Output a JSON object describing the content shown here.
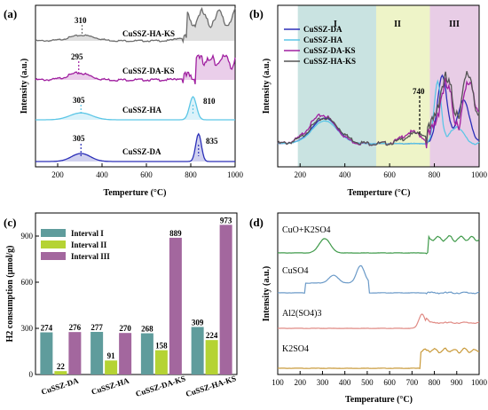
{
  "panels": {
    "a": {
      "label": "(a)",
      "xlabel": "Temperture (°C)",
      "ylabel": "Intensity (a.u.)",
      "xlim": [
        100,
        1000
      ],
      "xticks": [
        200,
        400,
        600,
        800,
        1000
      ],
      "series": [
        {
          "name": "CuSSZ-HA-KS",
          "color": "#6e6e6e",
          "peaks": [
            "310"
          ]
        },
        {
          "name": "CuSSZ-DA-KS",
          "color": "#a020a0",
          "peaks": [
            "295"
          ]
        },
        {
          "name": "CuSSZ-HA",
          "color": "#5cc6e6",
          "peaks": [
            "305",
            "810"
          ]
        },
        {
          "name": "CuSSZ-DA",
          "color": "#2b2fb8",
          "peaks": [
            "305",
            "835"
          ]
        }
      ]
    },
    "b": {
      "label": "(b)",
      "xlabel": "Temperture (°C)",
      "ylabel": "Intensity (a.u.)",
      "xlim": [
        100,
        1000
      ],
      "xticks": [
        200,
        400,
        600,
        800,
        1000
      ],
      "regions": [
        {
          "name": "I",
          "from": 190,
          "to": 540,
          "color": "#c9e3e1"
        },
        {
          "name": "II",
          "from": 540,
          "to": 780,
          "color": "#eef4c8"
        },
        {
          "name": "III",
          "from": 780,
          "to": 1000,
          "color": "#e8cde6"
        }
      ],
      "legend": [
        "CuSSZ-DA",
        "CuSSZ-HA",
        "CuSSZ-DA-KS",
        "CuSSZ-HA-KS"
      ],
      "legend_colors": [
        "#2b2fb8",
        "#5cc6e6",
        "#a020a0",
        "#555555"
      ],
      "annotation": "740"
    },
    "c": {
      "label": "(c)",
      "ylabel": "H2 consumption (μmol/g)",
      "ylim": [
        0,
        1050
      ],
      "yticks": [
        0,
        300,
        600,
        900
      ],
      "legend": [
        "Interval I",
        "Interval II",
        "Interval III"
      ],
      "legend_colors": [
        "#5f9c9c",
        "#b5d334",
        "#a3679e"
      ]
    },
    "d": {
      "label": "(d)",
      "xlabel": "Temperature (°C)",
      "ylabel": "Intensity (a.u.)",
      "xlim": [
        100,
        1000
      ],
      "xticks": [
        100,
        200,
        300,
        400,
        500,
        600,
        700,
        800,
        900,
        1000
      ],
      "series": [
        {
          "name": "CuO+K2SO4",
          "color": "#3f9a4a"
        },
        {
          "name": "CuSO4",
          "color": "#6b9ac8"
        },
        {
          "name": "Al2(SO4)3",
          "color": "#e08a84"
        },
        {
          "name": "K2SO4",
          "color": "#c99a3a"
        }
      ]
    }
  },
  "chart_data": [
    {
      "type": "line",
      "title": "(a)",
      "xlabel": "Temperture (°C)",
      "ylabel": "Intensity (a.u.)",
      "xlim": [
        100,
        1000
      ],
      "series": [
        {
          "name": "CuSSZ-HA-KS",
          "peak_labels": [
            310
          ]
        },
        {
          "name": "CuSSZ-DA-KS",
          "peak_labels": [
            295
          ]
        },
        {
          "name": "CuSSZ-HA",
          "peak_labels": [
            305,
            810
          ]
        },
        {
          "name": "CuSSZ-DA",
          "peak_labels": [
            305,
            835
          ]
        }
      ]
    },
    {
      "type": "line",
      "title": "(b)",
      "xlabel": "Temperture (°C)",
      "ylabel": "Intensity (a.u.)",
      "xlim": [
        100,
        1000
      ],
      "series": [
        {
          "name": "CuSSZ-DA"
        },
        {
          "name": "CuSSZ-HA"
        },
        {
          "name": "CuSSZ-DA-KS"
        },
        {
          "name": "CuSSZ-HA-KS"
        }
      ],
      "annotations": [
        "740",
        "I",
        "II",
        "III"
      ]
    },
    {
      "type": "bar",
      "title": "(c)",
      "categories": [
        "CuSSZ-DA",
        "CuSSZ-HA",
        "CuSSZ-DA-KS",
        "CuSSZ-HA-KS"
      ],
      "series": [
        {
          "name": "Interval I",
          "values": [
            274,
            277,
            268,
            309
          ]
        },
        {
          "name": "Interval II",
          "values": [
            22,
            91,
            158,
            224
          ]
        },
        {
          "name": "Interval III",
          "values": [
            276,
            270,
            889,
            973
          ]
        }
      ],
      "ylabel": "H2 consumption (μmol/g)",
      "ylim": [
        0,
        1050
      ]
    },
    {
      "type": "line",
      "title": "(d)",
      "xlabel": "Temperature (°C)",
      "ylabel": "Intensity (a.u.)",
      "xlim": [
        100,
        1000
      ],
      "series": [
        {
          "name": "CuO+K2SO4"
        },
        {
          "name": "CuSO4"
        },
        {
          "name": "Al2(SO4)3"
        },
        {
          "name": "K2SO4"
        }
      ]
    }
  ]
}
